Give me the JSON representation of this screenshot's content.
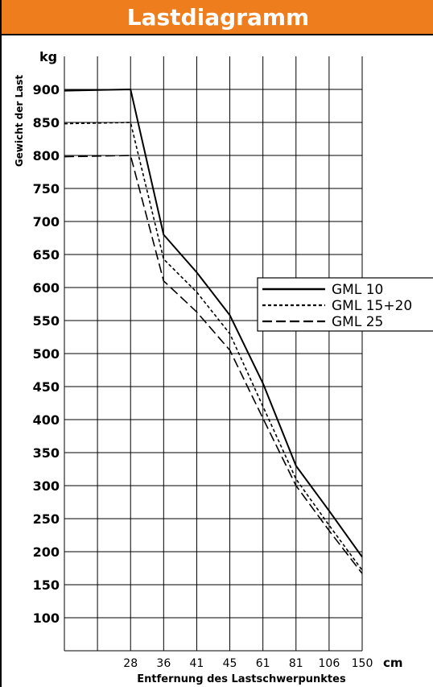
{
  "header": {
    "title": "Lastdiagramm"
  },
  "colors": {
    "banner": "#ee7d1e",
    "line": "#000000",
    "grid": "#000000"
  },
  "chart_data": {
    "type": "line",
    "title": "Lastdiagramm",
    "ylabel": "Gewicht der Last",
    "yunit": "kg",
    "xlabel": "Entfernung des Lastschwerpunktes",
    "xunit": "cm",
    "ylim": [
      50,
      950
    ],
    "y_ticks": [
      100,
      150,
      200,
      250,
      300,
      350,
      400,
      450,
      500,
      550,
      600,
      650,
      700,
      750,
      800,
      850,
      900
    ],
    "x_categories": [
      "28",
      "36",
      "41",
      "45",
      "61",
      "81",
      "106",
      "150"
    ],
    "grid": true,
    "legend_position": "right",
    "series": [
      {
        "name": "GML 10",
        "dash": "solid",
        "points": [
          [
            0,
            898
          ],
          [
            2,
            900
          ],
          [
            3,
            680
          ],
          [
            4,
            623
          ],
          [
            5,
            558
          ],
          [
            6,
            455
          ],
          [
            7,
            330
          ],
          [
            8,
            262
          ],
          [
            9,
            192
          ]
        ]
      },
      {
        "name": "GML 15+20",
        "dash": "dotted",
        "points": [
          [
            0,
            848
          ],
          [
            2,
            850
          ],
          [
            3,
            643
          ],
          [
            4,
            593
          ],
          [
            5,
            530
          ],
          [
            6,
            420
          ],
          [
            7,
            310
          ],
          [
            8,
            240
          ],
          [
            9,
            172
          ]
        ]
      },
      {
        "name": "GML  25",
        "dash": "dashed",
        "points": [
          [
            0,
            798
          ],
          [
            2,
            800
          ],
          [
            3,
            610
          ],
          [
            4,
            563
          ],
          [
            5,
            505
          ],
          [
            6,
            402
          ],
          [
            7,
            300
          ],
          [
            8,
            232
          ],
          [
            9,
            167
          ]
        ]
      }
    ]
  }
}
